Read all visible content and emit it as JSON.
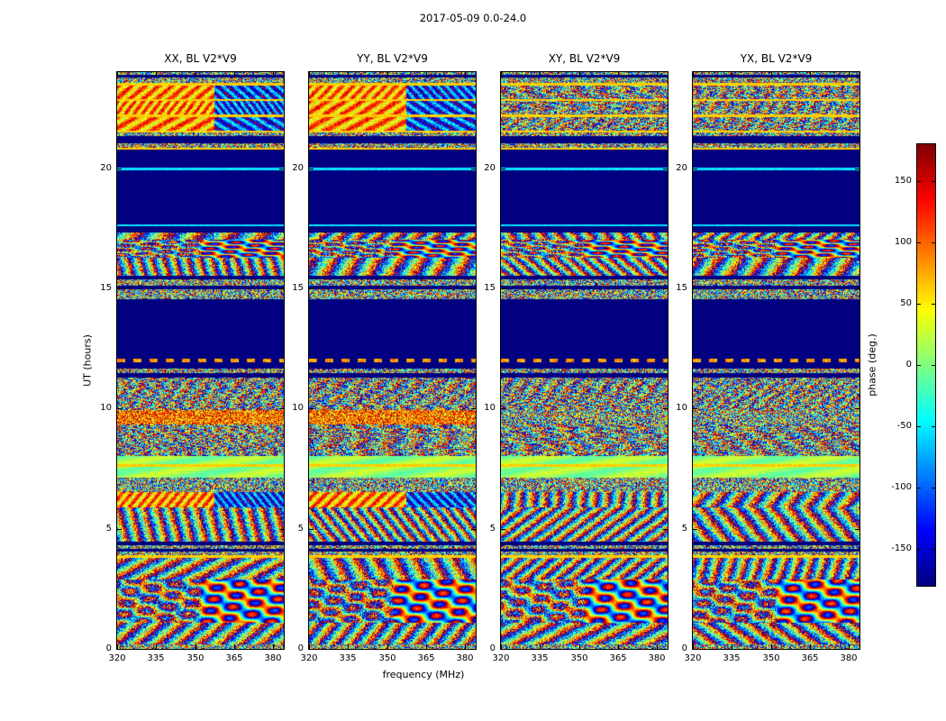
{
  "chart_data": {
    "type": "heatmap",
    "figure_title": "2017-05-09 0.0-24.0",
    "xlabel": "frequency (MHz)",
    "ylabel": "UT (hours)",
    "x_range_mhz": [
      320,
      384
    ],
    "y_range_hours": [
      0,
      24
    ],
    "xticks": [
      320,
      335,
      350,
      365,
      380
    ],
    "yticks": [
      0,
      5,
      10,
      15,
      20
    ],
    "panels": [
      {
        "key": "xx",
        "title": "XX, BL V2*V9"
      },
      {
        "key": "yy",
        "title": "YY, BL V2*V9"
      },
      {
        "key": "xy",
        "title": "XY, BL V2*V9"
      },
      {
        "key": "yx",
        "title": "YX, BL V2*V9"
      }
    ],
    "colorbar": {
      "label": "phase (deg.)",
      "min": -180,
      "max": 180,
      "ticks": [
        150,
        100,
        50,
        0,
        -50,
        -100,
        -150
      ],
      "colormap": "jet"
    },
    "seed": 20170509,
    "bands": [
      {
        "t0": 0.0,
        "t1": 0.2,
        "xx": "n",
        "xy": "n"
      },
      {
        "t0": 0.2,
        "t1": 1.1,
        "xx": "f",
        "xy": "f"
      },
      {
        "t0": 1.1,
        "t1": 2.9,
        "xx": "s",
        "xy": "s"
      },
      {
        "t0": 2.9,
        "t1": 3.8,
        "xx": "f",
        "xy": "f"
      },
      {
        "t0": 3.8,
        "t1": 3.9,
        "xx": "ly",
        "xy": "ly"
      },
      {
        "t0": 3.9,
        "t1": 4.05,
        "xx": "n",
        "xy": "n"
      },
      {
        "t0": 4.05,
        "t1": 4.2,
        "xx": "b",
        "xy": "b"
      },
      {
        "t0": 4.2,
        "t1": 4.35,
        "xx": "n",
        "xy": "n"
      },
      {
        "t0": 4.35,
        "t1": 4.5,
        "xx": "b",
        "xy": "b"
      },
      {
        "t0": 4.5,
        "t1": 5.9,
        "xx": "f",
        "xy": "f"
      },
      {
        "t0": 5.9,
        "t1": 6.55,
        "xx": "w",
        "xy": "f"
      },
      {
        "t0": 6.55,
        "t1": 7.15,
        "xx": "n",
        "xy": "n"
      },
      {
        "t0": 7.15,
        "t1": 7.6,
        "xx": "g",
        "xy": "g"
      },
      {
        "t0": 7.6,
        "t1": 7.7,
        "xx": "ly",
        "xy": "ly"
      },
      {
        "t0": 7.7,
        "t1": 8.05,
        "xx": "g",
        "xy": "g"
      },
      {
        "t0": 8.05,
        "t1": 9.35,
        "xx": "m",
        "xy": "m"
      },
      {
        "t0": 9.35,
        "t1": 9.95,
        "xx": "wn",
        "xy": "n"
      },
      {
        "t0": 9.95,
        "t1": 11.3,
        "xx": "m",
        "xy": "m"
      },
      {
        "t0": 11.3,
        "t1": 11.5,
        "xx": "b",
        "xy": "b"
      },
      {
        "t0": 11.5,
        "t1": 11.7,
        "xx": "n",
        "xy": "n"
      },
      {
        "t0": 11.7,
        "t1": 11.95,
        "xx": "b",
        "xy": "b"
      },
      {
        "t0": 11.95,
        "t1": 12.08,
        "xx": "ld",
        "xy": "ld"
      },
      {
        "t0": 12.08,
        "t1": 14.55,
        "xx": "b",
        "xy": "b"
      },
      {
        "t0": 14.55,
        "t1": 15.0,
        "xx": "n",
        "xy": "n"
      },
      {
        "t0": 15.0,
        "t1": 15.12,
        "xx": "b",
        "xy": "b"
      },
      {
        "t0": 15.12,
        "t1": 15.4,
        "xx": "n",
        "xy": "n"
      },
      {
        "t0": 15.4,
        "t1": 15.55,
        "xx": "b",
        "xy": "b"
      },
      {
        "t0": 15.55,
        "t1": 16.3,
        "xx": "f",
        "xy": "f"
      },
      {
        "t0": 16.3,
        "t1": 17.05,
        "xx": "s",
        "xy": "s"
      },
      {
        "t0": 17.05,
        "t1": 17.35,
        "xx": "f",
        "xy": "f"
      },
      {
        "t0": 17.35,
        "t1": 17.6,
        "xx": "b",
        "xy": "b"
      },
      {
        "t0": 17.6,
        "t1": 17.68,
        "xx": "lc",
        "xy": "lc"
      },
      {
        "t0": 17.68,
        "t1": 19.95,
        "xx": "b",
        "xy": "b"
      },
      {
        "t0": 19.95,
        "t1": 20.05,
        "xx": "lc",
        "xy": "lc"
      },
      {
        "t0": 20.05,
        "t1": 20.78,
        "xx": "b",
        "xy": "b"
      },
      {
        "t0": 20.78,
        "t1": 20.88,
        "xx": "ly",
        "xy": "ly"
      },
      {
        "t0": 20.88,
        "t1": 21.05,
        "xx": "n",
        "xy": "n"
      },
      {
        "t0": 21.05,
        "t1": 21.35,
        "xx": "b",
        "xy": "b"
      },
      {
        "t0": 21.35,
        "t1": 21.5,
        "xx": "n",
        "xy": "n"
      },
      {
        "t0": 21.5,
        "t1": 21.6,
        "xx": "ly",
        "xy": "ly"
      },
      {
        "t0": 21.6,
        "t1": 22.15,
        "xx": "w",
        "xy": "m"
      },
      {
        "t0": 22.15,
        "t1": 22.25,
        "xx": "ly",
        "xy": "ly"
      },
      {
        "t0": 22.25,
        "t1": 22.8,
        "xx": "w",
        "xy": "m"
      },
      {
        "t0": 22.8,
        "t1": 22.9,
        "xx": "ly",
        "xy": "ly"
      },
      {
        "t0": 22.9,
        "t1": 23.45,
        "xx": "w",
        "xy": "m"
      },
      {
        "t0": 23.45,
        "t1": 23.55,
        "xx": "ly",
        "xy": "ly"
      },
      {
        "t0": 23.55,
        "t1": 23.8,
        "xx": "n",
        "xy": "n"
      },
      {
        "t0": 23.8,
        "t1": 23.9,
        "xx": "b",
        "xy": "b"
      },
      {
        "t0": 23.9,
        "t1": 24.01,
        "xx": "n",
        "xy": "n"
      }
    ]
  }
}
